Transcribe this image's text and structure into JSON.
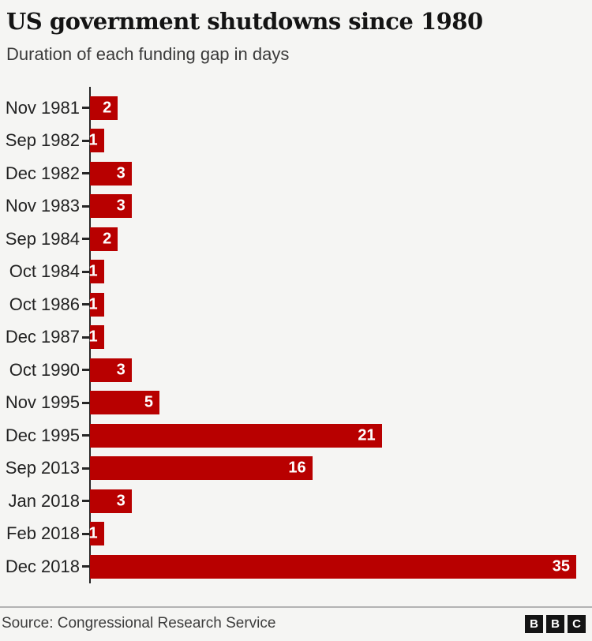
{
  "header": {
    "title": "US government shutdowns since 1980",
    "subtitle": "Duration of each funding gap in days"
  },
  "chart_data": {
    "type": "bar",
    "orientation": "horizontal",
    "title": "US government shutdowns since 1980",
    "subtitle": "Duration of each funding gap in days",
    "categories": [
      "Nov 1981",
      "Sep 1982",
      "Dec 1982",
      "Nov 1983",
      "Sep 1984",
      "Oct 1984",
      "Oct 1986",
      "Dec 1987",
      "Oct 1990",
      "Nov 1995",
      "Dec 1995",
      "Sep 2013",
      "Jan 2018",
      "Feb 2018",
      "Dec 2018"
    ],
    "values": [
      2,
      1,
      3,
      3,
      2,
      1,
      1,
      1,
      3,
      5,
      21,
      16,
      3,
      1,
      35
    ],
    "xlabel": "",
    "ylabel": "",
    "xlim": [
      0,
      35
    ],
    "grid": false,
    "legend": false,
    "value_labels_position": "inside-end",
    "bar_color": "#b80000",
    "value_label_color": "#ffffff",
    "background_color": "#f5f5f3"
  },
  "footer": {
    "source": "Source: Congressional Research Service",
    "logo_letters": [
      "B",
      "B",
      "C"
    ]
  }
}
